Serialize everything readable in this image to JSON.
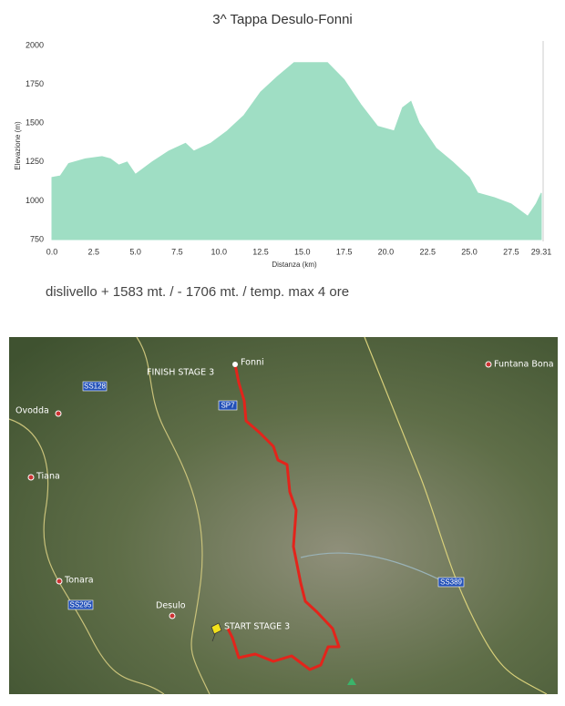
{
  "chart_data": {
    "type": "area",
    "title": "3^ Tappa Desulo-Fonni",
    "subtitle": "dislivello + 1583 mt. / - 1706 mt. / temp. max 4 ore",
    "x_label": "Distanza   (km)",
    "y_label": "Elevazione (m)",
    "x": [
      0,
      0.5,
      1.0,
      2.0,
      3.0,
      3.5,
      4.0,
      4.5,
      5.0,
      6.0,
      7.0,
      8.0,
      8.5,
      9.5,
      10.5,
      11.5,
      12.5,
      13.5,
      14.5,
      15.5,
      16.5,
      17.5,
      18.5,
      19.5,
      20.5,
      21.0,
      21.5,
      22.0,
      23.0,
      24.0,
      25.0,
      25.5,
      26.5,
      27.5,
      28.5,
      29.0,
      29.31
    ],
    "values": [
      1150,
      1160,
      1240,
      1270,
      1285,
      1270,
      1230,
      1250,
      1170,
      1250,
      1320,
      1370,
      1320,
      1370,
      1450,
      1550,
      1700,
      1800,
      1890,
      1890,
      1890,
      1780,
      1620,
      1480,
      1450,
      1600,
      1640,
      1500,
      1340,
      1250,
      1150,
      1050,
      1020,
      980,
      900,
      980,
      1050
    ],
    "color": "#9fdec4",
    "xlim": [
      0,
      29.31
    ],
    "xticks": [
      {
        "value": 0,
        "label": "0.0"
      },
      2.5,
      {
        "value": 5,
        "label": "5.0"
      },
      7.5,
      {
        "value": 10,
        "label": "10.0"
      },
      12.5,
      {
        "value": 15,
        "label": "15.0"
      },
      17.5,
      {
        "value": 20,
        "label": "20.0"
      },
      22.5,
      {
        "value": 25,
        "label": "25.0"
      },
      27.5,
      29.31
    ],
    "ylim": [
      750,
      2000
    ],
    "yticks": [
      750,
      1000,
      1250,
      1500,
      1750,
      2000
    ]
  },
  "map": {
    "labels": [
      "Fonni",
      "FINISH STAGE 3",
      "SS128",
      "Ovodda",
      "SP7",
      "Tiana",
      "Tonara",
      "SS295",
      "Desulo",
      "START STAGE 3",
      "Funtana Bona",
      "SS389"
    ]
  }
}
